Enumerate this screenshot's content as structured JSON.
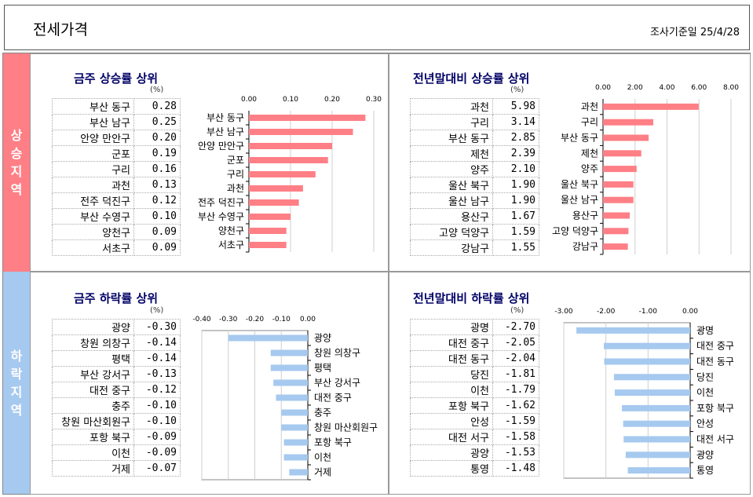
{
  "header": {
    "title": "전세가격",
    "date": "조사기준일 25/4/28"
  },
  "side": {
    "up": [
      "상",
      "승",
      "지",
      "역"
    ],
    "down": [
      "하",
      "락",
      "지",
      "역"
    ]
  },
  "colors": {
    "rise": "#ff7f86",
    "fall": "#a6c9ef",
    "title": "#000066"
  },
  "quadrants": [
    {
      "id": "weekly-rise",
      "title": "금주 상승률 상위",
      "unit": "(%)",
      "rows": [
        [
          "부산 동구",
          "0.28"
        ],
        [
          "부산 남구",
          "0.25"
        ],
        [
          "안양 만안구",
          "0.20"
        ],
        [
          "군포",
          "0.19"
        ],
        [
          "구리",
          "0.16"
        ],
        [
          "과천",
          "0.13"
        ],
        [
          "전주 덕진구",
          "0.12"
        ],
        [
          "부산 수영구",
          "0.10"
        ],
        [
          "양천구",
          "0.09"
        ],
        [
          "서초구",
          "0.09"
        ]
      ]
    },
    {
      "id": "ytd-rise",
      "title": "전년말대비 상승률 상위",
      "unit": "(%)",
      "rows": [
        [
          "과천",
          "5.98"
        ],
        [
          "구리",
          "3.14"
        ],
        [
          "부산 동구",
          "2.85"
        ],
        [
          "제천",
          "2.39"
        ],
        [
          "양주",
          "2.10"
        ],
        [
          "울산 북구",
          "1.90"
        ],
        [
          "울산 남구",
          "1.90"
        ],
        [
          "용산구",
          "1.67"
        ],
        [
          "고양 덕양구",
          "1.59"
        ],
        [
          "강남구",
          "1.55"
        ]
      ]
    },
    {
      "id": "weekly-fall",
      "title": "금주 하락률 상위",
      "unit": "(%)",
      "rows": [
        [
          "광양",
          "-0.30"
        ],
        [
          "창원 의창구",
          "-0.14"
        ],
        [
          "평택",
          "-0.14"
        ],
        [
          "부산 강서구",
          "-0.13"
        ],
        [
          "대전 중구",
          "-0.12"
        ],
        [
          "충주",
          "-0.10"
        ],
        [
          "창원 마산회원구",
          "-0.10"
        ],
        [
          "포항 북구",
          "-0.09"
        ],
        [
          "이천",
          "-0.09"
        ],
        [
          "거제",
          "-0.07"
        ]
      ]
    },
    {
      "id": "ytd-fall",
      "title": "전년말대비 하락률 상위",
      "unit": "(%)",
      "rows": [
        [
          "광명",
          "-2.70"
        ],
        [
          "대전 중구",
          "-2.05"
        ],
        [
          "대전 동구",
          "-2.04"
        ],
        [
          "당진",
          "-1.81"
        ],
        [
          "이천",
          "-1.79"
        ],
        [
          "포항 북구",
          "-1.62"
        ],
        [
          "안성",
          "-1.59"
        ],
        [
          "대전 서구",
          "-1.58"
        ],
        [
          "광양",
          "-1.53"
        ],
        [
          "통영",
          "-1.48"
        ]
      ]
    }
  ],
  "chart_data": [
    {
      "type": "bar",
      "orientation": "horizontal",
      "title": "금주 상승률 상위",
      "unit": "(%)",
      "categories": [
        "부산 동구",
        "부산 남구",
        "안양 만안구",
        "군포",
        "구리",
        "과천",
        "전주 덕진구",
        "부산 수영구",
        "양천구",
        "서초구"
      ],
      "values": [
        0.28,
        0.25,
        0.2,
        0.19,
        0.16,
        0.13,
        0.12,
        0.1,
        0.09,
        0.09
      ],
      "xlim": [
        0,
        0.3
      ],
      "ticks": [
        "0.00",
        "0.10",
        "0.20",
        "0.30"
      ],
      "tick_values": [
        0,
        0.1,
        0.2,
        0.3
      ],
      "labels_side": "left",
      "color": "#ff7f86"
    },
    {
      "type": "bar",
      "orientation": "horizontal",
      "title": "전년말대비 상승률 상위",
      "unit": "(%)",
      "categories": [
        "과천",
        "구리",
        "부산 동구",
        "제천",
        "양주",
        "울산 북구",
        "울산 남구",
        "용산구",
        "고양 덕양구",
        "강남구"
      ],
      "values": [
        5.98,
        3.14,
        2.85,
        2.39,
        2.1,
        1.9,
        1.9,
        1.67,
        1.59,
        1.55
      ],
      "xlim": [
        0,
        8
      ],
      "ticks": [
        "0.00",
        "2.00",
        "4.00",
        "6.00",
        "8.00"
      ],
      "tick_values": [
        0,
        2,
        4,
        6,
        8
      ],
      "labels_side": "left",
      "color": "#ff7f86"
    },
    {
      "type": "bar",
      "orientation": "horizontal",
      "title": "금주 하락률 상위",
      "unit": "(%)",
      "categories": [
        "광양",
        "창원 의창구",
        "평택",
        "부산 강서구",
        "대전 중구",
        "충주",
        "창원 마산회원구",
        "포항 북구",
        "이천",
        "거제"
      ],
      "values": [
        -0.3,
        -0.14,
        -0.14,
        -0.13,
        -0.12,
        -0.1,
        -0.1,
        -0.09,
        -0.09,
        -0.07
      ],
      "xlim": [
        -0.4,
        0
      ],
      "ticks": [
        "-0.40",
        "-0.30",
        "-0.20",
        "-0.10",
        "0.00"
      ],
      "tick_values": [
        -0.4,
        -0.3,
        -0.2,
        -0.1,
        0
      ],
      "labels_side": "right",
      "color": "#a6c9ef"
    },
    {
      "type": "bar",
      "orientation": "horizontal",
      "title": "전년말대비 하락률 상위",
      "unit": "(%)",
      "categories": [
        "광명",
        "대전 중구",
        "대전 동구",
        "당진",
        "이천",
        "포항 북구",
        "안성",
        "대전 서구",
        "광양",
        "통영"
      ],
      "values": [
        -2.7,
        -2.05,
        -2.04,
        -1.81,
        -1.79,
        -1.62,
        -1.59,
        -1.58,
        -1.53,
        -1.48
      ],
      "xlim": [
        -3,
        0
      ],
      "ticks": [
        "-3.00",
        "-2.00",
        "-1.00",
        "0.00"
      ],
      "tick_values": [
        -3,
        -2,
        -1,
        0
      ],
      "labels_side": "right",
      "color": "#a6c9ef"
    }
  ]
}
